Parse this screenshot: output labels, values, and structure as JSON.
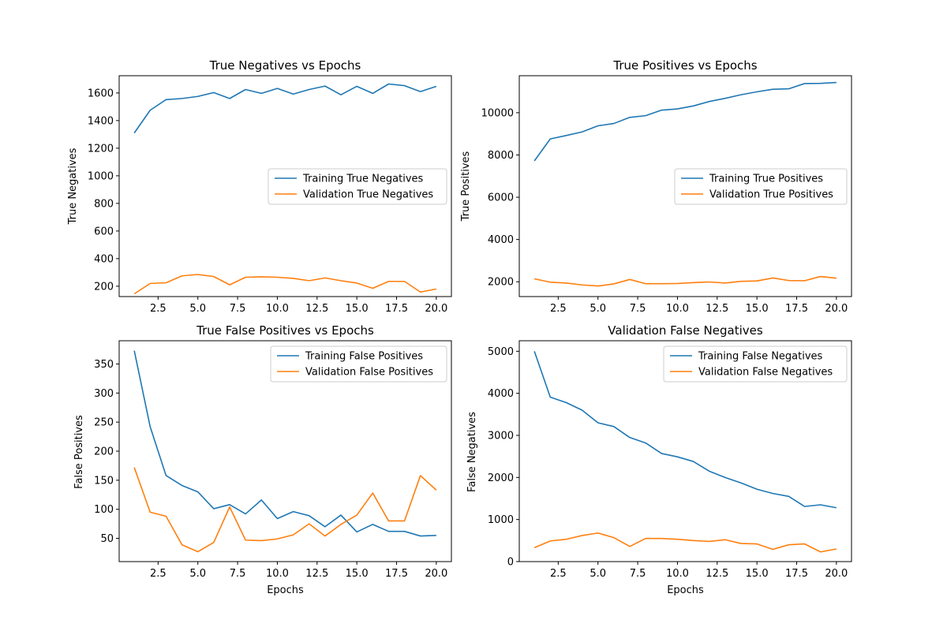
{
  "chart_data": [
    {
      "type": "line",
      "title": "True Negatives vs Epochs",
      "xlabel": "",
      "ylabel": "True Negatives",
      "x": [
        1,
        2,
        3,
        4,
        5,
        6,
        7,
        8,
        9,
        10,
        11,
        12,
        13,
        14,
        15,
        16,
        17,
        18,
        19,
        20
      ],
      "xlim": [
        0.05,
        20.95
      ],
      "ylim": [
        125,
        1725
      ],
      "xticks": [
        2.5,
        5.0,
        7.5,
        10.0,
        12.5,
        15.0,
        17.5,
        20.0
      ],
      "yticks": [
        200,
        400,
        600,
        800,
        1000,
        1200,
        1400,
        1600
      ],
      "legend_position": "center-right",
      "series": [
        {
          "name": "Training True Negatives",
          "color": "#1f77b4",
          "values": [
            1310,
            1475,
            1552,
            1560,
            1575,
            1603,
            1560,
            1625,
            1597,
            1633,
            1592,
            1625,
            1650,
            1587,
            1648,
            1597,
            1665,
            1653,
            1610,
            1648
          ]
        },
        {
          "name": "Validation True Negatives",
          "color": "#ff7f0e",
          "values": [
            145,
            220,
            225,
            275,
            285,
            270,
            210,
            265,
            268,
            265,
            257,
            240,
            260,
            240,
            223,
            185,
            235,
            235,
            158,
            180
          ]
        }
      ]
    },
    {
      "type": "line",
      "title": "True Positives vs Epochs",
      "xlabel": "",
      "ylabel": "True Positives",
      "x": [
        1,
        2,
        3,
        4,
        5,
        6,
        7,
        8,
        9,
        10,
        11,
        12,
        13,
        14,
        15,
        16,
        17,
        18,
        19,
        20
      ],
      "xlim": [
        0.05,
        20.95
      ],
      "ylim": [
        1300,
        11750
      ],
      "xticks": [
        2.5,
        5.0,
        7.5,
        10.0,
        12.5,
        15.0,
        17.5,
        20.0
      ],
      "yticks": [
        2000,
        4000,
        6000,
        8000,
        10000
      ],
      "legend_position": "center-right",
      "series": [
        {
          "name": "Training True Positives",
          "color": "#1f77b4",
          "values": [
            7720,
            8760,
            8920,
            9090,
            9380,
            9490,
            9780,
            9860,
            10120,
            10180,
            10320,
            10530,
            10680,
            10850,
            10990,
            11110,
            11130,
            11380,
            11390,
            11430
          ]
        },
        {
          "name": "Validation True Positives",
          "color": "#ff7f0e",
          "values": [
            2140,
            1980,
            1940,
            1850,
            1800,
            1900,
            2110,
            1910,
            1910,
            1920,
            1960,
            1990,
            1940,
            2020,
            2040,
            2180,
            2060,
            2050,
            2250,
            2170
          ]
        }
      ]
    },
    {
      "type": "line",
      "title": "True False Positives vs Epochs",
      "xlabel": "Epochs",
      "ylabel": "False Positives",
      "x": [
        1,
        2,
        3,
        4,
        5,
        6,
        7,
        8,
        9,
        10,
        11,
        12,
        13,
        14,
        15,
        16,
        17,
        18,
        19,
        20
      ],
      "xlim": [
        0.05,
        20.95
      ],
      "ylim": [
        10,
        390
      ],
      "xticks": [
        2.5,
        5.0,
        7.5,
        10.0,
        12.5,
        15.0,
        17.5,
        20.0
      ],
      "yticks": [
        50,
        100,
        150,
        200,
        250,
        300,
        350
      ],
      "legend_position": "top-right",
      "series": [
        {
          "name": "Training False Positives",
          "color": "#1f77b4",
          "values": [
            373,
            242,
            158,
            141,
            130,
            101,
            108,
            92,
            116,
            84,
            96,
            89,
            70,
            90,
            61,
            74,
            62,
            62,
            54,
            55
          ]
        },
        {
          "name": "Validation False Positives",
          "color": "#ff7f0e",
          "values": [
            172,
            95,
            88,
            39,
            27,
            43,
            104,
            47,
            46,
            49,
            56,
            75,
            54,
            74,
            90,
            128,
            80,
            80,
            158,
            133
          ]
        }
      ]
    },
    {
      "type": "line",
      "title": "Validation False Negatives",
      "xlabel": "Epochs",
      "ylabel": "False Negatives",
      "x": [
        1,
        2,
        3,
        4,
        5,
        6,
        7,
        8,
        9,
        10,
        11,
        12,
        13,
        14,
        15,
        16,
        17,
        18,
        19,
        20
      ],
      "xlim": [
        0.05,
        20.95
      ],
      "ylim": [
        0,
        5250
      ],
      "xticks": [
        2.5,
        5.0,
        7.5,
        10.0,
        12.5,
        15.0,
        17.5,
        20.0
      ],
      "yticks": [
        0,
        1000,
        2000,
        3000,
        4000,
        5000
      ],
      "legend_position": "top-right",
      "series": [
        {
          "name": "Training False Negatives",
          "color": "#1f77b4",
          "values": [
            5000,
            3910,
            3780,
            3600,
            3300,
            3210,
            2950,
            2820,
            2570,
            2490,
            2380,
            2150,
            2000,
            1870,
            1720,
            1620,
            1550,
            1310,
            1350,
            1280
          ]
        },
        {
          "name": "Validation False Negatives",
          "color": "#ff7f0e",
          "values": [
            330,
            490,
            530,
            620,
            680,
            570,
            360,
            550,
            550,
            530,
            500,
            480,
            520,
            430,
            420,
            290,
            400,
            420,
            230,
            300
          ]
        }
      ]
    }
  ]
}
